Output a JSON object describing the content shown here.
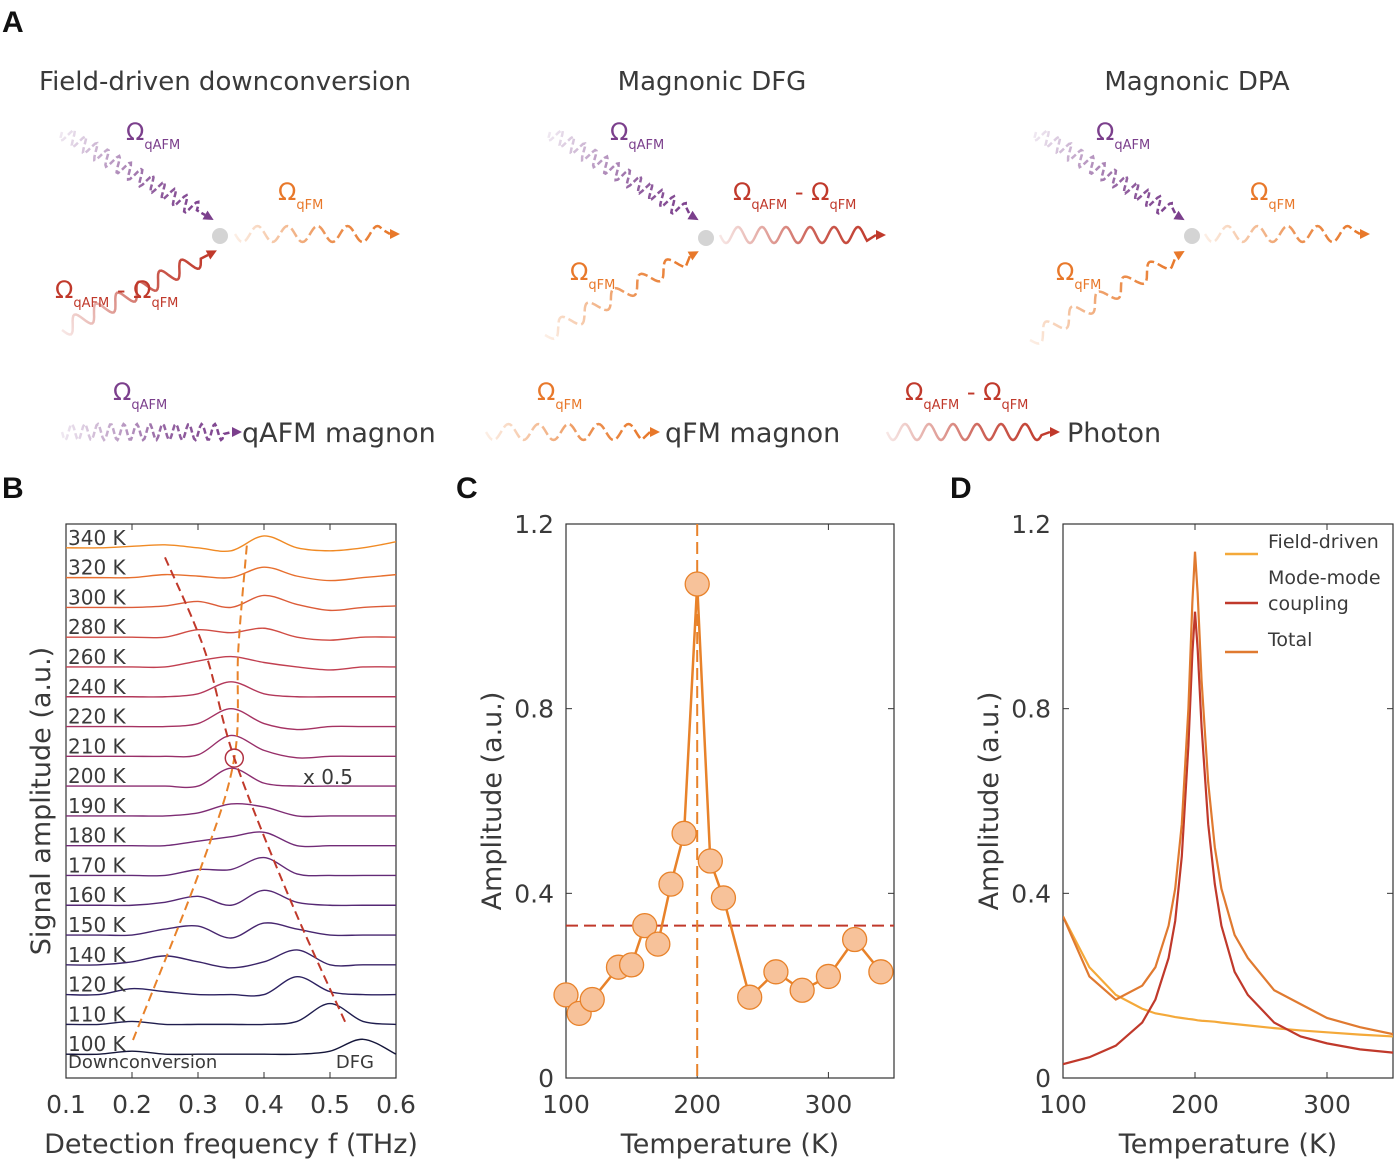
{
  "panel_a": {
    "letter": "A",
    "diagrams": [
      {
        "title": "Field-driven downconversion",
        "labels": [
          {
            "color": "#7b3f8c",
            "parts": [
              {
                "t": "Ω"
              },
              {
                "sub": "qAFM"
              }
            ]
          },
          {
            "color": "#c0392b",
            "parts": [
              {
                "t": "Ω"
              },
              {
                "sub": "qAFM"
              },
              {
                "t": " - "
              },
              {
                "t": "Ω"
              },
              {
                "sub": "qFM"
              }
            ]
          },
          {
            "color": "#e8782a",
            "parts": [
              {
                "t": "Ω"
              },
              {
                "sub": "qFM"
              }
            ]
          }
        ]
      },
      {
        "title": "Magnonic DFG",
        "labels": [
          {
            "color": "#7b3f8c",
            "parts": [
              {
                "t": "Ω"
              },
              {
                "sub": "qAFM"
              }
            ]
          },
          {
            "color": "#e8782a",
            "parts": [
              {
                "t": "Ω"
              },
              {
                "sub": "qFM"
              }
            ]
          },
          {
            "color": "#c0392b",
            "parts": [
              {
                "t": "Ω"
              },
              {
                "sub": "qAFM"
              },
              {
                "t": " - "
              },
              {
                "t": "Ω"
              },
              {
                "sub": "qFM"
              }
            ]
          }
        ]
      },
      {
        "title": "Magnonic DPA",
        "labels": [
          {
            "color": "#7b3f8c",
            "parts": [
              {
                "t": "Ω"
              },
              {
                "sub": "qAFM"
              }
            ]
          },
          {
            "color": "#e8782a",
            "parts": [
              {
                "t": "Ω"
              },
              {
                "sub": "qFM"
              }
            ]
          },
          {
            "color": "#e8782a",
            "parts": [
              {
                "t": "Ω"
              },
              {
                "sub": "qFM"
              }
            ]
          }
        ]
      }
    ],
    "legend": [
      {
        "text": "qAFM magnon",
        "color": "#7b3f8c",
        "parts": [
          {
            "t": "Ω"
          },
          {
            "sub": "qAFM"
          }
        ]
      },
      {
        "text": "qFM magnon",
        "color": "#e8782a",
        "parts": [
          {
            "t": "Ω"
          },
          {
            "sub": "qFM"
          }
        ]
      },
      {
        "text": "Photon",
        "color": "#c0392b",
        "parts": [
          {
            "t": "Ω"
          },
          {
            "sub": "qAFM"
          },
          {
            "t": " - "
          },
          {
            "t": "Ω"
          },
          {
            "sub": "qFM"
          }
        ]
      }
    ]
  },
  "chart_data": [
    {
      "type": "waterfall",
      "letter": "B",
      "xlabel": "Detection frequency f (THz)",
      "ylabel": "Signal amplitude (a.u.)",
      "x": [
        0.1,
        0.15,
        0.2,
        0.25,
        0.3,
        0.35,
        0.4,
        0.45,
        0.5,
        0.55,
        0.6
      ],
      "xlim": [
        0.1,
        0.6
      ],
      "xticks": [
        0.1,
        0.2,
        0.3,
        0.4,
        0.5,
        0.6
      ],
      "ylim": [
        -0.8,
        17.8
      ],
      "series": [
        {
          "name": "100 K",
          "color": "#15163a",
          "values": [
            0,
            0,
            0.1,
            0,
            0,
            0,
            0,
            0,
            0.1,
            0.5,
            0
          ]
        },
        {
          "name": "110 K",
          "color": "#1f1d4e",
          "values": [
            0,
            0,
            0.1,
            0,
            0,
            0,
            0,
            0.1,
            0.7,
            0.1,
            0
          ]
        },
        {
          "name": "120 K",
          "color": "#2c2160",
          "values": [
            0,
            0,
            0.2,
            0.1,
            0,
            0,
            0,
            0.6,
            0.1,
            0,
            0
          ]
        },
        {
          "name": "140 K",
          "color": "#3a2468",
          "values": [
            0,
            0,
            0.1,
            0.3,
            0.1,
            -0.1,
            0.1,
            0.5,
            0,
            0,
            0
          ]
        },
        {
          "name": "150 K",
          "color": "#47266f",
          "values": [
            0,
            0,
            0,
            0.2,
            0.3,
            -0.1,
            0.4,
            0.2,
            0,
            0,
            0
          ]
        },
        {
          "name": "160 K",
          "color": "#552874",
          "values": [
            0,
            0,
            0,
            0.1,
            0.3,
            0,
            0.5,
            0.1,
            0,
            0,
            0
          ]
        },
        {
          "name": "170 K",
          "color": "#632a77",
          "values": [
            0,
            0,
            0,
            0,
            0.2,
            0.2,
            0.6,
            0.05,
            0,
            0,
            0
          ]
        },
        {
          "name": "180 K",
          "color": "#712b77",
          "values": [
            0,
            0,
            0,
            0,
            0.15,
            0.3,
            0.45,
            0,
            0,
            0,
            0
          ]
        },
        {
          "name": "190 K",
          "color": "#7e2c74",
          "values": [
            0,
            0,
            0,
            0,
            0.1,
            0.4,
            0.3,
            0,
            0,
            0,
            0
          ]
        },
        {
          "name": "200 K",
          "color": "#8b2d70",
          "values": [
            0,
            0,
            0,
            0,
            0,
            0.6,
            0.1,
            0,
            0,
            0,
            0
          ],
          "note": "x 0.5"
        },
        {
          "name": "210 K",
          "color": "#982f69",
          "values": [
            0,
            0,
            0,
            0,
            0.05,
            0.7,
            0.2,
            -0.05,
            0,
            0,
            0
          ]
        },
        {
          "name": "220 K",
          "color": "#a53262",
          "values": [
            0,
            0,
            0,
            0,
            0.1,
            0.6,
            0.1,
            -0.1,
            0,
            0,
            0
          ]
        },
        {
          "name": "240 K",
          "color": "#b3385a",
          "values": [
            0,
            0,
            0,
            0,
            0.1,
            0.5,
            0.1,
            0,
            0,
            0,
            0
          ]
        },
        {
          "name": "260 K",
          "color": "#c13f50",
          "values": [
            0,
            0,
            0,
            0,
            0.2,
            0.35,
            0.15,
            0,
            -0.1,
            0,
            0
          ]
        },
        {
          "name": "280 K",
          "color": "#d04c44",
          "values": [
            0,
            0,
            0,
            0,
            0.25,
            0.15,
            0.3,
            0,
            -0.1,
            0,
            0
          ]
        },
        {
          "name": "300 K",
          "color": "#dc5c38",
          "values": [
            0,
            0,
            0,
            0.05,
            0.2,
            0,
            0.4,
            0.1,
            -0.1,
            0,
            0.05
          ]
        },
        {
          "name": "320 K",
          "color": "#e76f2e",
          "values": [
            0,
            0,
            0,
            0.1,
            0.05,
            0,
            0.35,
            0.05,
            -0.1,
            0,
            0.1
          ]
        },
        {
          "name": "340 K",
          "color": "#f08a24",
          "values": [
            0,
            0,
            0.05,
            0.1,
            0,
            -0.1,
            0.4,
            0,
            -0.1,
            0,
            0.2
          ]
        }
      ],
      "guides": [
        {
          "name": "Downconversion",
          "color": "#e8822a",
          "x": [
            0.2015,
            0.303,
            0.355,
            0.361,
            0.374
          ],
          "y": [
            0.475,
            6.18,
            9.94,
            13.56,
            17.09
          ]
        },
        {
          "name": "DFG",
          "color": "#c0392b",
          "x": [
            0.25,
            0.31,
            0.355,
            0.44,
            0.523
          ],
          "y": [
            16.68,
            13.56,
            9.94,
            5.17,
            1.08
          ]
        }
      ]
    },
    {
      "type": "line",
      "letter": "C",
      "xlabel": "Temperature (K)",
      "ylabel": "Amplitude (a.u.)",
      "x": [
        100,
        110,
        120,
        140,
        150,
        160,
        170,
        180,
        190,
        200,
        210,
        220,
        240,
        260,
        280,
        300,
        320,
        340
      ],
      "values": [
        0.18,
        0.14,
        0.17,
        0.24,
        0.245,
        0.33,
        0.29,
        0.42,
        0.53,
        1.07,
        0.47,
        0.39,
        0.175,
        0.23,
        0.19,
        0.22,
        0.3,
        0.23
      ],
      "color": "#e8822a",
      "marker_fill": "#f7c29a",
      "xlim": [
        100,
        350
      ],
      "xticks": [
        100,
        200,
        300
      ],
      "ylim": [
        0,
        1.2
      ],
      "yticks": [
        0,
        0.4,
        0.8,
        1.2
      ],
      "hline": {
        "value": 0.33,
        "color": "#c0392b"
      },
      "vline": {
        "value": 200,
        "color": "#e8822a"
      }
    },
    {
      "type": "line",
      "letter": "D",
      "xlabel": "Temperature (K)",
      "ylabel": "Amplitude (a.u.)",
      "legend": "upper right",
      "x": [
        100,
        120,
        140,
        160,
        170,
        180,
        185,
        190,
        195,
        198,
        200,
        202,
        205,
        210,
        215,
        220,
        230,
        240,
        260,
        280,
        300,
        325,
        350
      ],
      "series": [
        {
          "name": "Field-driven",
          "color": "#f4a93a",
          "values": [
            0.35,
            0.24,
            0.18,
            0.15,
            0.14,
            0.135,
            0.132,
            0.13,
            0.128,
            0.127,
            0.126,
            0.125,
            0.124,
            0.123,
            0.122,
            0.12,
            0.117,
            0.114,
            0.108,
            0.103,
            0.099,
            0.094,
            0.09
          ]
        },
        {
          "name": "Mode-mode coupling",
          "color": "#c0392b",
          "values": [
            0.03,
            0.045,
            0.07,
            0.12,
            0.17,
            0.26,
            0.34,
            0.48,
            0.72,
            0.92,
            1.01,
            0.93,
            0.76,
            0.55,
            0.42,
            0.33,
            0.23,
            0.18,
            0.12,
            0.09,
            0.075,
            0.062,
            0.055
          ]
        },
        {
          "name": "Total",
          "color": "#e07a30",
          "values": [
            0.35,
            0.22,
            0.17,
            0.2,
            0.24,
            0.33,
            0.41,
            0.55,
            0.8,
            1.03,
            1.14,
            1.05,
            0.86,
            0.64,
            0.5,
            0.41,
            0.31,
            0.26,
            0.19,
            0.16,
            0.13,
            0.11,
            0.095
          ]
        }
      ],
      "xlim": [
        100,
        350
      ],
      "xticks": [
        100,
        200,
        300
      ],
      "ylim": [
        0,
        1.2
      ],
      "yticks": [
        0,
        0.4,
        0.8,
        1.2
      ]
    }
  ]
}
